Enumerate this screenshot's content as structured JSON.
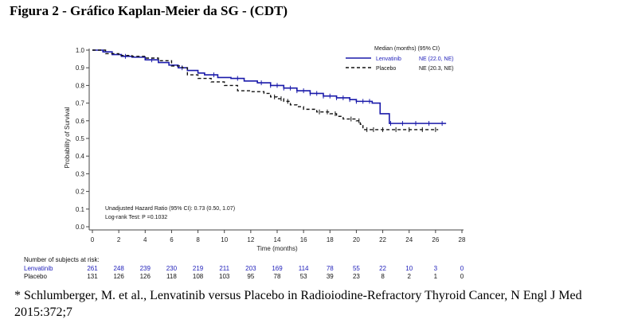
{
  "figure_title": "Figura 2 - Gráfico Kaplan-Meier da SG - (CDT)",
  "footnote": "* Schlumberger, M. et al., Lenvatinib versus Placebo in Radioiodine-Refractory Thyroid Cancer, N Engl J Med 2015:372;7",
  "colors": {
    "lenvatinib": "#1a1aaa",
    "placebo": "#111111",
    "axis": "#444444",
    "risk_blue": "#2222bb"
  },
  "chart_data": {
    "type": "line",
    "title": "",
    "xlabel": "Time (months)",
    "ylabel": "Probability of Survival",
    "xlim": [
      0,
      28
    ],
    "ylim": [
      0.0,
      1.0
    ],
    "x_ticks": [
      "0",
      "2",
      "4",
      "6",
      "8",
      "10",
      "12",
      "14",
      "16",
      "18",
      "20",
      "22",
      "24",
      "26",
      "28"
    ],
    "y_ticks": [
      "0.0",
      "0.1",
      "0.2",
      "0.3",
      "0.4",
      "0.5",
      "0.6",
      "0.7",
      "0.8",
      "0.9",
      "1.0"
    ],
    "legend": {
      "placement": "top-right",
      "header": "Median (months) (95% CI)",
      "entries": [
        {
          "name": "Lenvatinib",
          "median": "NE (22.0, NE)"
        },
        {
          "name": "Placebo",
          "median": "NE (20.3, NE)"
        }
      ]
    },
    "annotations": [
      "Unadjusted Hazard Ratio (95% CI): 0.73 (0.50, 1.07)",
      "Log-rank Test: P =0.1032"
    ],
    "series": [
      {
        "name": "Lenvatinib",
        "style": "solid",
        "x": [
          0,
          0.8,
          1.5,
          2.2,
          3,
          4,
          5,
          5.8,
          6.5,
          7.2,
          8,
          8.5,
          9.5,
          10.5,
          11.5,
          12.5,
          13.5,
          14.5,
          15.5,
          16.5,
          17.5,
          18.5,
          19.5,
          20,
          20.5,
          21.2,
          21.8,
          22.2,
          22.5,
          23,
          25,
          26.8
        ],
        "y": [
          1.0,
          0.99,
          0.975,
          0.965,
          0.96,
          0.945,
          0.93,
          0.915,
          0.9,
          0.885,
          0.87,
          0.86,
          0.845,
          0.84,
          0.825,
          0.815,
          0.8,
          0.785,
          0.77,
          0.755,
          0.74,
          0.73,
          0.72,
          0.71,
          0.71,
          0.7,
          0.64,
          0.64,
          0.585,
          0.585,
          0.585,
          0.585
        ],
        "censor_x": [
          2.5,
          4.5,
          6.8,
          9.2,
          11,
          12.8,
          13.5,
          14,
          14.5,
          15,
          15.5,
          16,
          16.5,
          17,
          17.5,
          18,
          18.5,
          19,
          19.5,
          20,
          20.5,
          21,
          22.6,
          23.5,
          24.5,
          25.5,
          26.5
        ]
      },
      {
        "name": "Placebo",
        "style": "dashed",
        "x": [
          0,
          1,
          2,
          3,
          4,
          5,
          6,
          6.8,
          7.2,
          8,
          9,
          10,
          10.5,
          11,
          12,
          13,
          13.5,
          14,
          14.5,
          15,
          15.5,
          16,
          17,
          18,
          18.5,
          19,
          19.5,
          20,
          20.3,
          20.5,
          21,
          22,
          24,
          26.2
        ],
        "y": [
          1.0,
          0.98,
          0.97,
          0.965,
          0.955,
          0.94,
          0.91,
          0.9,
          0.86,
          0.84,
          0.82,
          0.8,
          0.8,
          0.77,
          0.765,
          0.755,
          0.735,
          0.725,
          0.71,
          0.69,
          0.68,
          0.665,
          0.65,
          0.64,
          0.625,
          0.61,
          0.61,
          0.6,
          0.58,
          0.55,
          0.55,
          0.55,
          0.55,
          0.55
        ],
        "censor_x": [
          13.8,
          14.3,
          14.8,
          17.2,
          17.8,
          18.4,
          19.6,
          20.2,
          20.8,
          21.3,
          22,
          23,
          24,
          25,
          26
        ]
      }
    ],
    "risk_table": {
      "title": "Number of subjects at risk:",
      "rows": [
        {
          "name": "Lenvatinib",
          "values": [
            "261",
            "248",
            "239",
            "230",
            "219",
            "211",
            "203",
            "169",
            "114",
            "78",
            "55",
            "22",
            "10",
            "3",
            "0"
          ]
        },
        {
          "name": "Placebo",
          "values": [
            "131",
            "126",
            "126",
            "118",
            "108",
            "103",
            "95",
            "78",
            "53",
            "39",
            "23",
            "8",
            "2",
            "1",
            "0"
          ]
        }
      ]
    }
  }
}
